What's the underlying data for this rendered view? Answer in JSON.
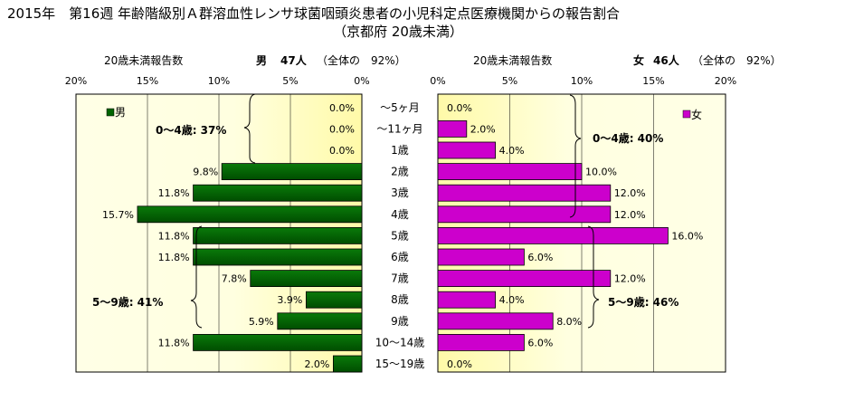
{
  "title_line1": "2015年　第16週 年齢階級別Ａ群溶血性レンサ球菌咽頭炎患者の小児科定点医療機関からの報告割合",
  "title_line2": "（京都府 20歳未満）",
  "male_panel": {
    "axis_caption": "20歳未満報告数",
    "group_label": "男",
    "count_label": "47人",
    "share_label": "（全体の　92%）",
    "legend_label": "男",
    "annotation_0_4": "0～4歳: 37%",
    "annotation_5_9": "5～9歳: 41%"
  },
  "female_panel": {
    "axis_caption": "20歳未満報告数",
    "group_label": "女",
    "count_label": "46人",
    "share_label": "（全体の　92%）",
    "legend_label": "女",
    "annotation_0_4": "0～4歳: 40%",
    "annotation_5_9": "5～9歳: 46%"
  },
  "chart_data": {
    "type": "bar",
    "orientation": "horizontal",
    "categories": [
      "～5ヶ月",
      "～11ヶ月",
      "1歳",
      "2歳",
      "3歳",
      "4歳",
      "5歳",
      "6歳",
      "7歳",
      "8歳",
      "9歳",
      "10～14歳",
      "15～19歳"
    ],
    "series": [
      {
        "name": "男",
        "color": "#006400",
        "values": [
          0.0,
          0.0,
          0.0,
          9.8,
          11.8,
          15.7,
          11.8,
          11.8,
          7.8,
          3.9,
          5.9,
          11.8,
          2.0
        ],
        "labels": [
          "0.0%",
          "0.0%",
          "0.0%",
          "9.8%",
          "11.8%",
          "15.7%",
          "11.8%",
          "11.8%",
          "7.8%",
          "3.9%",
          "5.9%",
          "11.8%",
          "2.0%"
        ]
      },
      {
        "name": "女",
        "color": "#cc00cc",
        "values": [
          0.0,
          2.0,
          4.0,
          10.0,
          12.0,
          12.0,
          16.0,
          6.0,
          12.0,
          4.0,
          8.0,
          6.0,
          0.0
        ],
        "labels": [
          "0.0%",
          "2.0%",
          "4.0%",
          "10.0%",
          "12.0%",
          "12.0%",
          "16.0%",
          "6.0%",
          "12.0%",
          "4.0%",
          "8.0%",
          "6.0%",
          "0.0%"
        ]
      }
    ],
    "xlim": [
      0,
      20
    ],
    "ticks": [
      "0%",
      "5%",
      "10%",
      "15%",
      "20%"
    ],
    "ticks_reversed": [
      "20%",
      "15%",
      "10%",
      "5%",
      "0%"
    ],
    "grid": true,
    "legend_position": "top-left / top-right"
  }
}
